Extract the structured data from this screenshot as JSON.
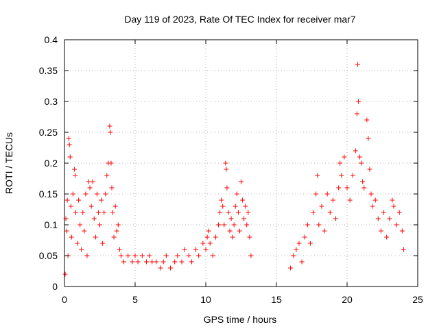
{
  "chart_data": {
    "type": "scatter",
    "title": "Day 119 of 2023, Rate Of TEC Index for receiver mar7",
    "xlabel": "GPS time / hours",
    "ylabel": "ROTI / TECUs",
    "xlim": [
      0,
      25
    ],
    "ylim": [
      0,
      0.4
    ],
    "x_ticks": [
      "0",
      "5",
      "10",
      "15",
      "20",
      "25"
    ],
    "y_ticks": [
      "0",
      "0.05",
      "0.1",
      "0.15",
      "0.2",
      "0.25",
      "0.3",
      "0.35",
      "0.4"
    ],
    "x_tick_values": [
      0,
      5,
      10,
      15,
      20,
      25
    ],
    "y_tick_values": [
      0,
      0.05,
      0.1,
      0.15,
      0.2,
      0.25,
      0.3,
      0.35,
      0.4
    ],
    "grid": true,
    "marker": "+",
    "marker_color": "#ff0000",
    "series": [
      {
        "points": [
          [
            0.05,
            0.02
          ],
          [
            0.1,
            0.11
          ],
          [
            0.15,
            0.09
          ],
          [
            0.2,
            0.14
          ],
          [
            0.25,
            0.05
          ],
          [
            0.3,
            0.24
          ],
          [
            0.35,
            0.23
          ],
          [
            0.4,
            0.21
          ],
          [
            0.45,
            0.13
          ],
          [
            0.5,
            0.08
          ],
          [
            0.6,
            0.15
          ],
          [
            0.7,
            0.19
          ],
          [
            0.75,
            0.18
          ],
          [
            0.8,
            0.12
          ],
          [
            0.9,
            0.07
          ],
          [
            1.0,
            0.14
          ],
          [
            1.1,
            0.1
          ],
          [
            1.2,
            0.06
          ],
          [
            1.3,
            0.12
          ],
          [
            1.4,
            0.09
          ],
          [
            1.5,
            0.15
          ],
          [
            1.6,
            0.05
          ],
          [
            1.7,
            0.17
          ],
          [
            1.8,
            0.16
          ],
          [
            1.9,
            0.13
          ],
          [
            2.0,
            0.17
          ],
          [
            2.1,
            0.11
          ],
          [
            2.2,
            0.08
          ],
          [
            2.3,
            0.15
          ],
          [
            2.4,
            0.12
          ],
          [
            2.5,
            0.1
          ],
          [
            2.6,
            0.14
          ],
          [
            2.7,
            0.07
          ],
          [
            2.8,
            0.12
          ],
          [
            2.9,
            0.15
          ],
          [
            3.0,
            0.18
          ],
          [
            3.1,
            0.2
          ],
          [
            3.2,
            0.26
          ],
          [
            3.25,
            0.25
          ],
          [
            3.3,
            0.2
          ],
          [
            3.35,
            0.16
          ],
          [
            3.4,
            0.12
          ],
          [
            3.5,
            0.08
          ],
          [
            3.6,
            0.13
          ],
          [
            3.7,
            0.09
          ],
          [
            3.8,
            0.1
          ],
          [
            3.9,
            0.06
          ],
          [
            4.0,
            0.05
          ],
          [
            4.2,
            0.04
          ],
          [
            4.5,
            0.05
          ],
          [
            4.8,
            0.04
          ],
          [
            5.0,
            0.05
          ],
          [
            5.2,
            0.04
          ],
          [
            5.5,
            0.05
          ],
          [
            5.8,
            0.04
          ],
          [
            6.0,
            0.05
          ],
          [
            6.2,
            0.04
          ],
          [
            6.5,
            0.04
          ],
          [
            6.8,
            0.03
          ],
          [
            7.0,
            0.04
          ],
          [
            7.2,
            0.05
          ],
          [
            7.5,
            0.03
          ],
          [
            7.8,
            0.04
          ],
          [
            8.0,
            0.05
          ],
          [
            8.3,
            0.04
          ],
          [
            8.5,
            0.06
          ],
          [
            8.8,
            0.05
          ],
          [
            9.0,
            0.04
          ],
          [
            9.3,
            0.06
          ],
          [
            9.5,
            0.05
          ],
          [
            9.8,
            0.07
          ],
          [
            10.0,
            0.06
          ],
          [
            10.1,
            0.08
          ],
          [
            10.2,
            0.09
          ],
          [
            10.3,
            0.07
          ],
          [
            10.5,
            0.05
          ],
          [
            10.7,
            0.08
          ],
          [
            10.9,
            0.1
          ],
          [
            11.0,
            0.12
          ],
          [
            11.1,
            0.14
          ],
          [
            11.2,
            0.13
          ],
          [
            11.3,
            0.1
          ],
          [
            11.4,
            0.2
          ],
          [
            11.45,
            0.19
          ],
          [
            11.5,
            0.16
          ],
          [
            11.6,
            0.12
          ],
          [
            11.7,
            0.09
          ],
          [
            11.8,
            0.11
          ],
          [
            11.9,
            0.08
          ],
          [
            12.0,
            0.1
          ],
          [
            12.1,
            0.13
          ],
          [
            12.2,
            0.15
          ],
          [
            12.3,
            0.12
          ],
          [
            12.4,
            0.09
          ],
          [
            12.5,
            0.17
          ],
          [
            12.6,
            0.14
          ],
          [
            12.7,
            0.11
          ],
          [
            12.8,
            0.13
          ],
          [
            12.9,
            0.1
          ],
          [
            13.0,
            0.12
          ],
          [
            13.1,
            0.08
          ],
          [
            13.2,
            0.05
          ],
          [
            16.0,
            0.03
          ],
          [
            16.2,
            0.05
          ],
          [
            16.4,
            0.06
          ],
          [
            16.6,
            0.07
          ],
          [
            16.8,
            0.04
          ],
          [
            17.0,
            0.08
          ],
          [
            17.2,
            0.1
          ],
          [
            17.4,
            0.07
          ],
          [
            17.6,
            0.12
          ],
          [
            17.8,
            0.15
          ],
          [
            17.9,
            0.18
          ],
          [
            18.0,
            0.1
          ],
          [
            18.2,
            0.13
          ],
          [
            18.4,
            0.09
          ],
          [
            18.6,
            0.15
          ],
          [
            18.8,
            0.12
          ],
          [
            19.0,
            0.14
          ],
          [
            19.2,
            0.11
          ],
          [
            19.4,
            0.16
          ],
          [
            19.5,
            0.2
          ],
          [
            19.6,
            0.18
          ],
          [
            19.8,
            0.21
          ],
          [
            20.0,
            0.16
          ],
          [
            20.2,
            0.14
          ],
          [
            20.4,
            0.18
          ],
          [
            20.6,
            0.22
          ],
          [
            20.7,
            0.28
          ],
          [
            20.75,
            0.36
          ],
          [
            20.8,
            0.3
          ],
          [
            20.9,
            0.21
          ],
          [
            21.0,
            0.2
          ],
          [
            21.1,
            0.17
          ],
          [
            21.2,
            0.16
          ],
          [
            21.4,
            0.27
          ],
          [
            21.5,
            0.24
          ],
          [
            21.6,
            0.19
          ],
          [
            21.7,
            0.15
          ],
          [
            21.8,
            0.13
          ],
          [
            22.0,
            0.14
          ],
          [
            22.2,
            0.11
          ],
          [
            22.4,
            0.09
          ],
          [
            22.6,
            0.12
          ],
          [
            22.8,
            0.08
          ],
          [
            23.0,
            0.11
          ],
          [
            23.2,
            0.14
          ],
          [
            23.3,
            0.13
          ],
          [
            23.5,
            0.1
          ],
          [
            23.7,
            0.12
          ],
          [
            23.9,
            0.09
          ],
          [
            24.0,
            0.06
          ]
        ]
      }
    ]
  }
}
